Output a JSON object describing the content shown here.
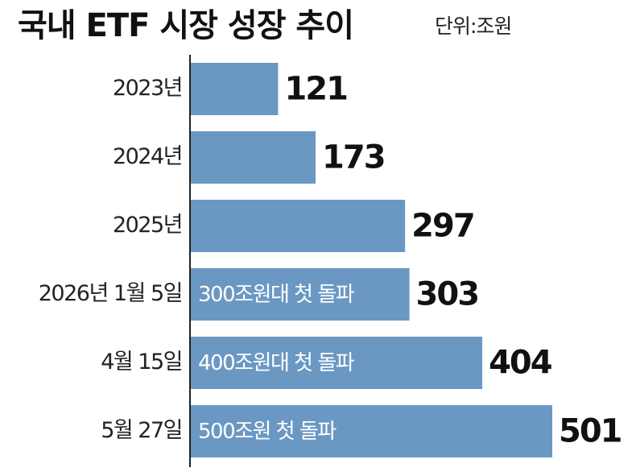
{
  "chart_data": {
    "type": "bar",
    "orientation": "horizontal",
    "title": "국내 ETF 시장 성장 추이",
    "subtitle": "단위:조원",
    "categories": [
      "2023년",
      "2024년",
      "2025년",
      "2026년 1월 5일",
      "4월 15일",
      "5월 27일"
    ],
    "values": [
      121,
      173,
      297,
      303,
      404,
      501
    ],
    "bar_labels": [
      null,
      null,
      null,
      "300조원대 첫 돌파",
      "400조원대 첫 돌파",
      "500조원 첫 돌파"
    ],
    "color": "#6b98c3"
  }
}
